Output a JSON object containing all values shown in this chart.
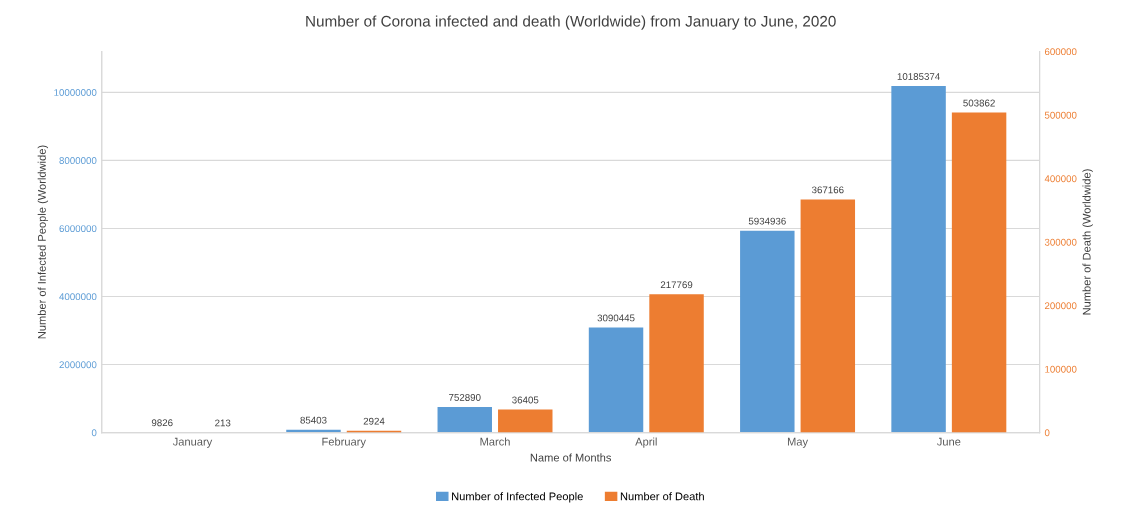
{
  "chart_data": {
    "type": "bar",
    "title": "Number of Corona infected and death (Worldwide) from January to June, 2020",
    "xlabel": "Name of Months",
    "ylabel": "Number of Infected People (Worldwide)",
    "y2label": "Number of Death (Worldwide)",
    "categories": [
      "January",
      "February",
      "March",
      "April",
      "May",
      "June"
    ],
    "series": [
      {
        "name": "Number of Infected People",
        "color": "#5b9bd5",
        "values": [
          9826,
          85403,
          752890,
          3090445,
          5934936,
          10185374
        ]
      },
      {
        "name": "Number of Death",
        "color": "#ed7d31",
        "axis": "y2",
        "values": [
          213,
          2924,
          36405,
          217769,
          367166,
          503862
        ]
      }
    ],
    "ylim": [
      0,
      11200000
    ],
    "yticks": [
      0,
      2000000,
      4000000,
      6000000,
      8000000,
      10000000
    ],
    "y2lim": [
      0,
      600000
    ],
    "y2ticks": [
      0,
      100000,
      200000,
      300000,
      400000,
      500000,
      600000
    ],
    "data_labels": true,
    "grid": "y",
    "legend": "bottom"
  }
}
